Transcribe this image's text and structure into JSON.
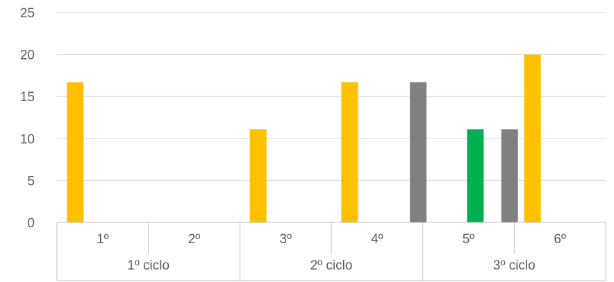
{
  "chart_data": {
    "type": "bar",
    "y_ticks": [
      "0",
      "5",
      "10",
      "15",
      "20",
      "25"
    ],
    "ylim": [
      0,
      25
    ],
    "grid": true,
    "legend": "none",
    "groups": [
      {
        "label": "1º ciclo",
        "categories": [
          "1º",
          "2º"
        ]
      },
      {
        "label": "2º ciclo",
        "categories": [
          "3º",
          "4º"
        ]
      },
      {
        "label": "3º ciclo",
        "categories": [
          "5º",
          "6º"
        ]
      }
    ],
    "categories": [
      "1º",
      "2º",
      "3º",
      "4º",
      "5º",
      "6º"
    ],
    "series": [
      {
        "color": "#FFC000",
        "values": [
          16.7,
          0,
          11.1,
          16.7,
          0,
          20
        ]
      },
      {
        "color": "#00B050",
        "values": [
          0,
          0,
          0,
          0,
          11.1,
          0
        ]
      },
      {
        "color": "#808080",
        "values": [
          0,
          0,
          0,
          16.7,
          11.1,
          0
        ]
      }
    ]
  }
}
